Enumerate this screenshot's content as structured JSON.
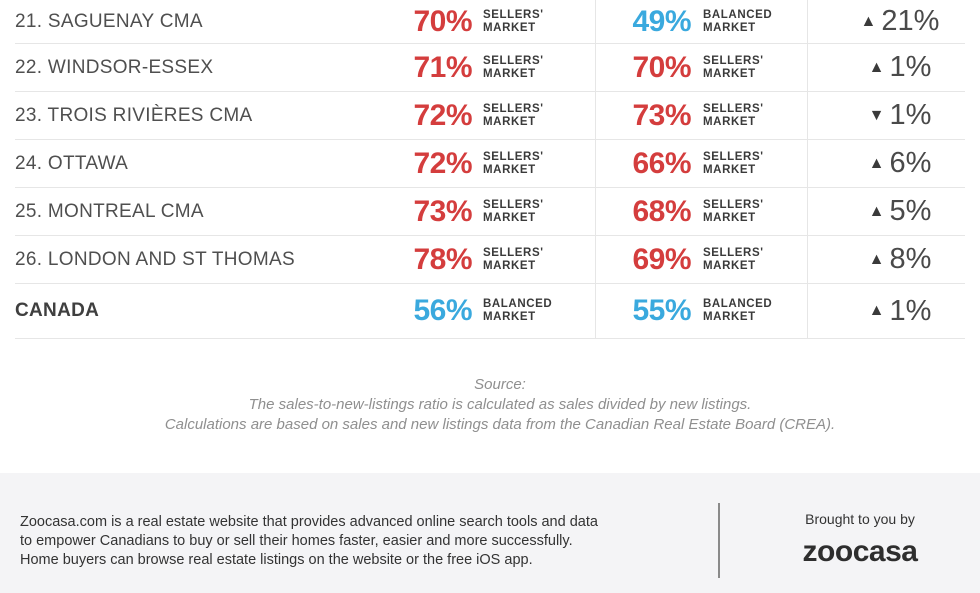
{
  "colors": {
    "sellers": "#d43d3d",
    "balanced": "#3aa9de"
  },
  "rows": [
    {
      "city": "21. SAGUENAY CMA",
      "p1": "70%",
      "m1": [
        "SELLERS'",
        "MARKET"
      ],
      "s1": "sellers",
      "p2": "49%",
      "m2": [
        "BALANCED",
        "MARKET"
      ],
      "s2": "balanced",
      "dir": "up",
      "change": "21%"
    },
    {
      "city": "22. WINDSOR-ESSEX",
      "p1": "71%",
      "m1": [
        "SELLERS'",
        "MARKET"
      ],
      "s1": "sellers",
      "p2": "70%",
      "m2": [
        "SELLERS'",
        "MARKET"
      ],
      "s2": "sellers",
      "dir": "up",
      "change": "1%"
    },
    {
      "city": "23. TROIS RIVIÈRES CMA",
      "p1": "72%",
      "m1": [
        "SELLERS'",
        "MARKET"
      ],
      "s1": "sellers",
      "p2": "73%",
      "m2": [
        "SELLERS'",
        "MARKET"
      ],
      "s2": "sellers",
      "dir": "down",
      "change": "1%"
    },
    {
      "city": "24. OTTAWA",
      "p1": "72%",
      "m1": [
        "SELLERS'",
        "MARKET"
      ],
      "s1": "sellers",
      "p2": "66%",
      "m2": [
        "SELLERS'",
        "MARKET"
      ],
      "s2": "sellers",
      "dir": "up",
      "change": "6%"
    },
    {
      "city": "25. MONTREAL CMA",
      "p1": "73%",
      "m1": [
        "SELLERS'",
        "MARKET"
      ],
      "s1": "sellers",
      "p2": "68%",
      "m2": [
        "SELLERS'",
        "MARKET"
      ],
      "s2": "sellers",
      "dir": "up",
      "change": "5%"
    },
    {
      "city": "26. LONDON AND ST THOMAS",
      "p1": "78%",
      "m1": [
        "SELLERS'",
        "MARKET"
      ],
      "s1": "sellers",
      "p2": "69%",
      "m2": [
        "SELLERS'",
        "MARKET"
      ],
      "s2": "sellers",
      "dir": "up",
      "change": "8%"
    },
    {
      "city": "CANADA",
      "p1": "56%",
      "m1": [
        "BALANCED",
        "MARKET"
      ],
      "s1": "balanced",
      "p2": "55%",
      "m2": [
        "BALANCED",
        "MARKET"
      ],
      "s2": "balanced",
      "dir": "up",
      "change": "1%"
    }
  ],
  "source": {
    "heading": "Source:",
    "line1": "The sales-to-new-listings ratio is calculated as sales divided by new listings.",
    "line2": "Calculations are based on sales and new listings data from the Canadian Real Estate Board (CREA)."
  },
  "footer": {
    "line1": "Zoocasa.com is a real estate website that provides advanced online search tools and data",
    "line2": "to empower Canadians to buy or sell their homes faster, easier and more successfully.",
    "line3": "Home buyers can browse real estate listings on the website or the free iOS app.",
    "brought_by": "Brought to you by",
    "logo": "zoocasa"
  }
}
